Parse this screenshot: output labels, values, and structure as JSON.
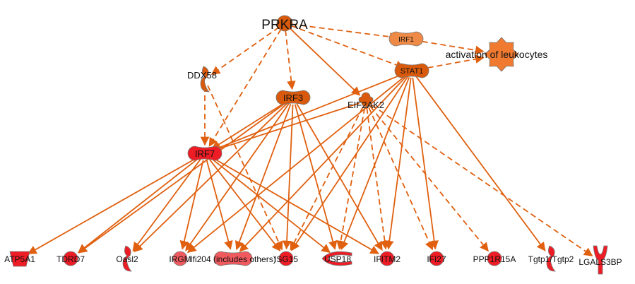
{
  "colors": {
    "edge": "#e0600f",
    "upstream": "#d95a0c",
    "irf1": "#ee8a45",
    "function": "#ef7a30",
    "target": "#ee1c25",
    "target_light": "#f05a5f",
    "node_border": "#777777"
  },
  "nodes": [
    {
      "id": "PRKRA",
      "label": "PRKRA",
      "shape": "circle",
      "color": "upstream",
      "size": "large"
    },
    {
      "id": "IRF1",
      "label": "IRF1",
      "shape": "dumbbell",
      "color": "irf1"
    },
    {
      "id": "ACT",
      "label": "activation of leukocytes",
      "shape": "gear",
      "color": "function"
    },
    {
      "id": "STAT1",
      "label": "STAT1",
      "shape": "dumbbell",
      "color": "upstream"
    },
    {
      "id": "DDX58",
      "label": "DDX58",
      "shape": "crescent",
      "color": "upstream"
    },
    {
      "id": "IRF3",
      "label": "IRF3",
      "shape": "dumbbell",
      "color": "upstream"
    },
    {
      "id": "EIF2AK2",
      "label": "EIF2AK2",
      "shape": "kinase",
      "color": "upstream"
    },
    {
      "id": "IRF7",
      "label": "IRF7",
      "shape": "dumbbell",
      "color": "target"
    },
    {
      "id": "ATP5A1",
      "label": "ATP5A1",
      "shape": "cup",
      "color": "target"
    },
    {
      "id": "TDRD7",
      "label": "TDRD7",
      "shape": "circle",
      "color": "target"
    },
    {
      "id": "Oasl2",
      "label": "Oasl2",
      "shape": "crescent",
      "color": "target"
    },
    {
      "id": "IRGM",
      "label": "IRGM",
      "shape": "circle",
      "color": "target_light"
    },
    {
      "id": "Ifi204",
      "label": "Ifi204 (includes others)",
      "shape": "dumbbell",
      "color": "target_light"
    },
    {
      "id": "ISG15",
      "label": "ISG15",
      "shape": "circle",
      "color": "target"
    },
    {
      "id": "USP18",
      "label": "USP18",
      "shape": "peptidase",
      "color": "target"
    },
    {
      "id": "IFITM2",
      "label": "IFITM2",
      "shape": "circle",
      "color": "target"
    },
    {
      "id": "IFI27",
      "label": "IFI27",
      "shape": "circle",
      "color": "target"
    },
    {
      "id": "PPP1R15A",
      "label": "PPP1R15A",
      "shape": "circle",
      "color": "target"
    },
    {
      "id": "Tgtp",
      "label": "Tgtp1/Tgtp2",
      "shape": "crescent",
      "color": "target"
    },
    {
      "id": "LGALS3BP",
      "label": "LGALS3BP",
      "shape": "receptor",
      "color": "target"
    }
  ],
  "edges": [
    [
      "PRKRA",
      "DDX58",
      "dashed"
    ],
    [
      "PRKRA",
      "IRF3",
      "dashed"
    ],
    [
      "PRKRA",
      "IRF7",
      "dashed"
    ],
    [
      "PRKRA",
      "EIF2AK2",
      "solid"
    ],
    [
      "PRKRA",
      "STAT1",
      "dashed"
    ],
    [
      "PRKRA",
      "IRF1",
      "dashed"
    ],
    [
      "IRF1",
      "ACT",
      "dashed"
    ],
    [
      "STAT1",
      "ACT",
      "dashed"
    ],
    [
      "DDX58",
      "IRF7",
      "dashed"
    ],
    [
      "DDX58",
      "ISG15",
      "dashed"
    ],
    [
      "STAT1",
      "IRF7",
      "solid"
    ],
    [
      "IRF3",
      "IRF7",
      "solid"
    ],
    [
      "EIF2AK2",
      "IRF7",
      "solid"
    ],
    [
      "IRF7",
      "ATP5A1",
      "solid"
    ],
    [
      "IRF7",
      "TDRD7",
      "solid"
    ],
    [
      "IRF7",
      "Oasl2",
      "solid"
    ],
    [
      "IRF7",
      "IRGM",
      "solid"
    ],
    [
      "IRF7",
      "Ifi204",
      "solid"
    ],
    [
      "IRF7",
      "ISG15",
      "solid"
    ],
    [
      "IRF7",
      "USP18",
      "solid"
    ],
    [
      "IRF7",
      "IFITM2",
      "solid"
    ],
    [
      "IRF3",
      "TDRD7",
      "solid"
    ],
    [
      "IRF3",
      "Oasl2",
      "solid"
    ],
    [
      "IRF3",
      "IRGM",
      "solid"
    ],
    [
      "IRF3",
      "Ifi204",
      "solid"
    ],
    [
      "IRF3",
      "ISG15",
      "solid"
    ],
    [
      "IRF3",
      "USP18",
      "solid"
    ],
    [
      "IRF3",
      "IFITM2",
      "solid"
    ],
    [
      "STAT1",
      "IRGM",
      "solid"
    ],
    [
      "STAT1",
      "Ifi204",
      "solid"
    ],
    [
      "STAT1",
      "ISG15",
      "solid"
    ],
    [
      "STAT1",
      "USP18",
      "solid"
    ],
    [
      "STAT1",
      "IFITM2",
      "solid"
    ],
    [
      "STAT1",
      "IFI27",
      "solid"
    ],
    [
      "STAT1",
      "Tgtp",
      "solid"
    ],
    [
      "EIF2AK2",
      "ISG15",
      "dashed"
    ],
    [
      "EIF2AK2",
      "USP18",
      "dashed"
    ],
    [
      "EIF2AK2",
      "IFITM2",
      "dashed"
    ],
    [
      "EIF2AK2",
      "IFI27",
      "dashed"
    ],
    [
      "EIF2AK2",
      "PPP1R15A",
      "dashed"
    ],
    [
      "EIF2AK2",
      "LGALS3BP",
      "dashed"
    ]
  ]
}
